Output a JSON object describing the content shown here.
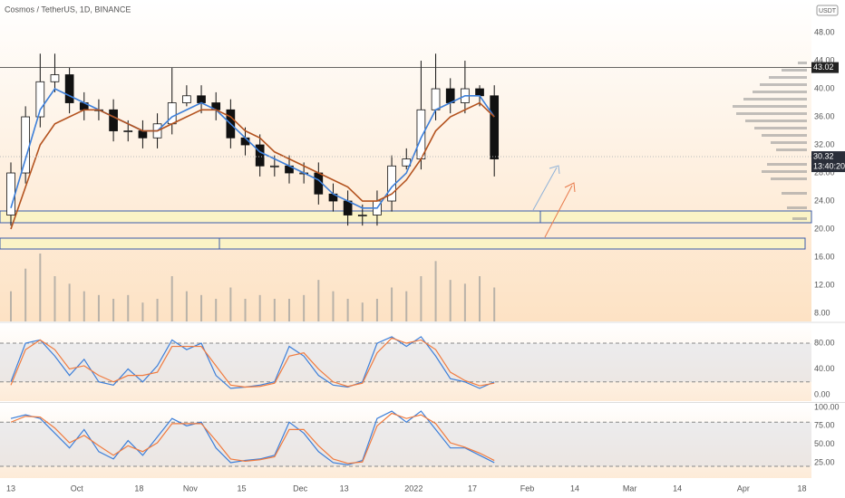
{
  "chart_data": [
    {
      "type": "candlestick",
      "title": "Cosmos / TetherUS, 1D, BINANCE",
      "currency": "USDT",
      "x": [
        0,
        4,
        8,
        12,
        16,
        20,
        24,
        28,
        32,
        36,
        40,
        44,
        48,
        52,
        56,
        60,
        64,
        68,
        72,
        76,
        80,
        84,
        88,
        92,
        96,
        100,
        104,
        108,
        112,
        116,
        120,
        124,
        128,
        132
      ],
      "open": [
        22,
        28,
        36,
        41,
        42,
        38,
        37,
        37,
        34,
        34,
        33,
        35,
        38,
        39,
        38,
        37,
        33,
        32,
        29,
        29,
        28,
        28,
        25,
        24,
        22,
        22,
        24,
        29,
        30,
        37,
        40,
        38,
        40,
        39
      ],
      "high": [
        29.5,
        37.5,
        45,
        45,
        43,
        39.5,
        38.5,
        38.5,
        35.5,
        35.5,
        36.5,
        43,
        40.5,
        40.5,
        39.5,
        38.5,
        34.5,
        33.5,
        30.5,
        30.5,
        29.5,
        29.5,
        26.5,
        25.5,
        23.5,
        25.5,
        30.5,
        31.5,
        44,
        45,
        41.5,
        44,
        40.5,
        40.5
      ],
      "low": [
        20.5,
        26.5,
        34.5,
        39.5,
        36.5,
        35.5,
        35.5,
        32.5,
        32.5,
        31.5,
        31.5,
        33.5,
        37.5,
        36.5,
        35.5,
        31.5,
        30.5,
        27.5,
        27.5,
        26.5,
        26.5,
        23.5,
        22.5,
        20.5,
        20.5,
        20.5,
        22.5,
        28.5,
        28.5,
        35.5,
        36.5,
        36.5,
        37.5,
        27.5
      ],
      "close": [
        28,
        36,
        41,
        42,
        38,
        37,
        37,
        34,
        34,
        33,
        35,
        38,
        39,
        38,
        37,
        33,
        32,
        29,
        29,
        28,
        28,
        25,
        24,
        22,
        22,
        24,
        29,
        30,
        37,
        40,
        38,
        40,
        39,
        30
      ],
      "series": [
        {
          "color": "#3d7fd9",
          "values": [
            23,
            30,
            37,
            40,
            39,
            38,
            37,
            36,
            35,
            34,
            34,
            36,
            37,
            38,
            37,
            35,
            33,
            31,
            30,
            29,
            28,
            27,
            25,
            24,
            23,
            23,
            26,
            28,
            33,
            37,
            38,
            39,
            39,
            36
          ]
        },
        {
          "color": "#b4531f",
          "values": [
            20,
            26,
            32,
            35,
            36,
            37,
            37,
            36,
            35,
            34,
            34,
            35,
            36,
            37,
            37,
            36,
            34,
            33,
            31,
            30,
            29,
            28,
            27,
            26,
            24,
            24,
            25,
            27,
            30,
            34,
            36,
            37,
            38,
            36
          ]
        }
      ],
      "volume": [
        40,
        70,
        90,
        60,
        50,
        40,
        35,
        30,
        35,
        25,
        30,
        60,
        40,
        35,
        30,
        45,
        30,
        35,
        30,
        30,
        35,
        55,
        40,
        30,
        25,
        30,
        45,
        40,
        60,
        80,
        55,
        50,
        60,
        45
      ],
      "ylim": [
        6.84,
        52.65
      ],
      "yticks": [
        {
          "value": 48,
          "label": "48.00"
        },
        {
          "value": 44,
          "label": "44.00"
        },
        {
          "value": 40,
          "label": "40.00"
        },
        {
          "value": 36,
          "label": "36.00"
        },
        {
          "value": 32,
          "label": "32.00"
        },
        {
          "value": 28,
          "label": "28.00"
        },
        {
          "value": 24,
          "label": "24.00"
        },
        {
          "value": 20,
          "label": "20.00"
        },
        {
          "value": 16,
          "label": "16.00"
        },
        {
          "value": 12,
          "label": "12.00"
        },
        {
          "value": 8,
          "label": "8.00"
        }
      ],
      "xlim": [
        -2.97,
        218.6
      ],
      "xticks": [
        {
          "value": 0,
          "label": "13"
        },
        {
          "value": 18,
          "label": "Oct"
        },
        {
          "value": 35,
          "label": "18"
        },
        {
          "value": 49,
          "label": "Nov"
        },
        {
          "value": 63,
          "label": "15"
        },
        {
          "value": 79,
          "label": "Dec"
        },
        {
          "value": 91,
          "label": "13"
        },
        {
          "value": 110,
          "label": "2022"
        },
        {
          "value": 126,
          "label": "17"
        },
        {
          "value": 141,
          "label": "Feb"
        },
        {
          "value": 154,
          "label": "14"
        },
        {
          "value": 169,
          "label": "Mar"
        },
        {
          "value": 182,
          "label": "14"
        },
        {
          "value": 200,
          "label": "Apr"
        },
        {
          "value": 216,
          "label": "18"
        }
      ],
      "hline": {
        "value": 43.02,
        "label": "43.02"
      },
      "last_price": {
        "value": 30.32,
        "label": "30.32",
        "countdown": "13:40:20"
      }
    },
    {
      "type": "line",
      "ylim": [
        -9.8,
        110.9
      ],
      "yticks": [
        {
          "value": 80,
          "label": "80.00"
        },
        {
          "value": 40,
          "label": "40.00"
        },
        {
          "value": 0,
          "label": "0.00"
        }
      ],
      "bands": [
        20,
        80
      ],
      "series": [
        {
          "color": "#3d7fd9",
          "values": [
            20,
            80,
            85,
            60,
            30,
            55,
            20,
            15,
            40,
            20,
            45,
            85,
            70,
            80,
            30,
            10,
            12,
            15,
            20,
            75,
            60,
            30,
            15,
            12,
            20,
            80,
            90,
            75,
            90,
            60,
            25,
            20,
            10,
            20
          ]
        },
        {
          "color": "#f07b3f",
          "values": [
            15,
            70,
            85,
            70,
            40,
            45,
            30,
            20,
            30,
            30,
            35,
            75,
            75,
            75,
            45,
            15,
            12,
            13,
            18,
            60,
            65,
            40,
            20,
            13,
            18,
            65,
            88,
            80,
            85,
            70,
            35,
            22,
            14,
            18
          ]
        }
      ]
    },
    {
      "type": "line",
      "ylim": [
        4.06,
        104.9
      ],
      "yticks": [
        {
          "value": 100,
          "label": "100.00"
        },
        {
          "value": 75,
          "label": "75.00"
        },
        {
          "value": 50,
          "label": "50.00"
        },
        {
          "value": 25,
          "label": "25.00"
        }
      ],
      "bands": [
        20,
        80
      ],
      "series": [
        {
          "color": "#3d7fd9",
          "values": [
            85,
            90,
            85,
            65,
            45,
            70,
            40,
            30,
            55,
            35,
            60,
            85,
            75,
            80,
            45,
            25,
            28,
            30,
            35,
            80,
            65,
            40,
            25,
            22,
            28,
            85,
            95,
            80,
            95,
            70,
            45,
            45,
            35,
            25
          ]
        },
        {
          "color": "#f07b3f",
          "values": [
            80,
            88,
            87,
            72,
            52,
            62,
            48,
            35,
            48,
            40,
            52,
            78,
            78,
            78,
            55,
            30,
            27,
            29,
            33,
            70,
            70,
            48,
            30,
            24,
            26,
            75,
            92,
            85,
            90,
            78,
            52,
            46,
            38,
            28
          ]
        }
      ]
    }
  ]
}
